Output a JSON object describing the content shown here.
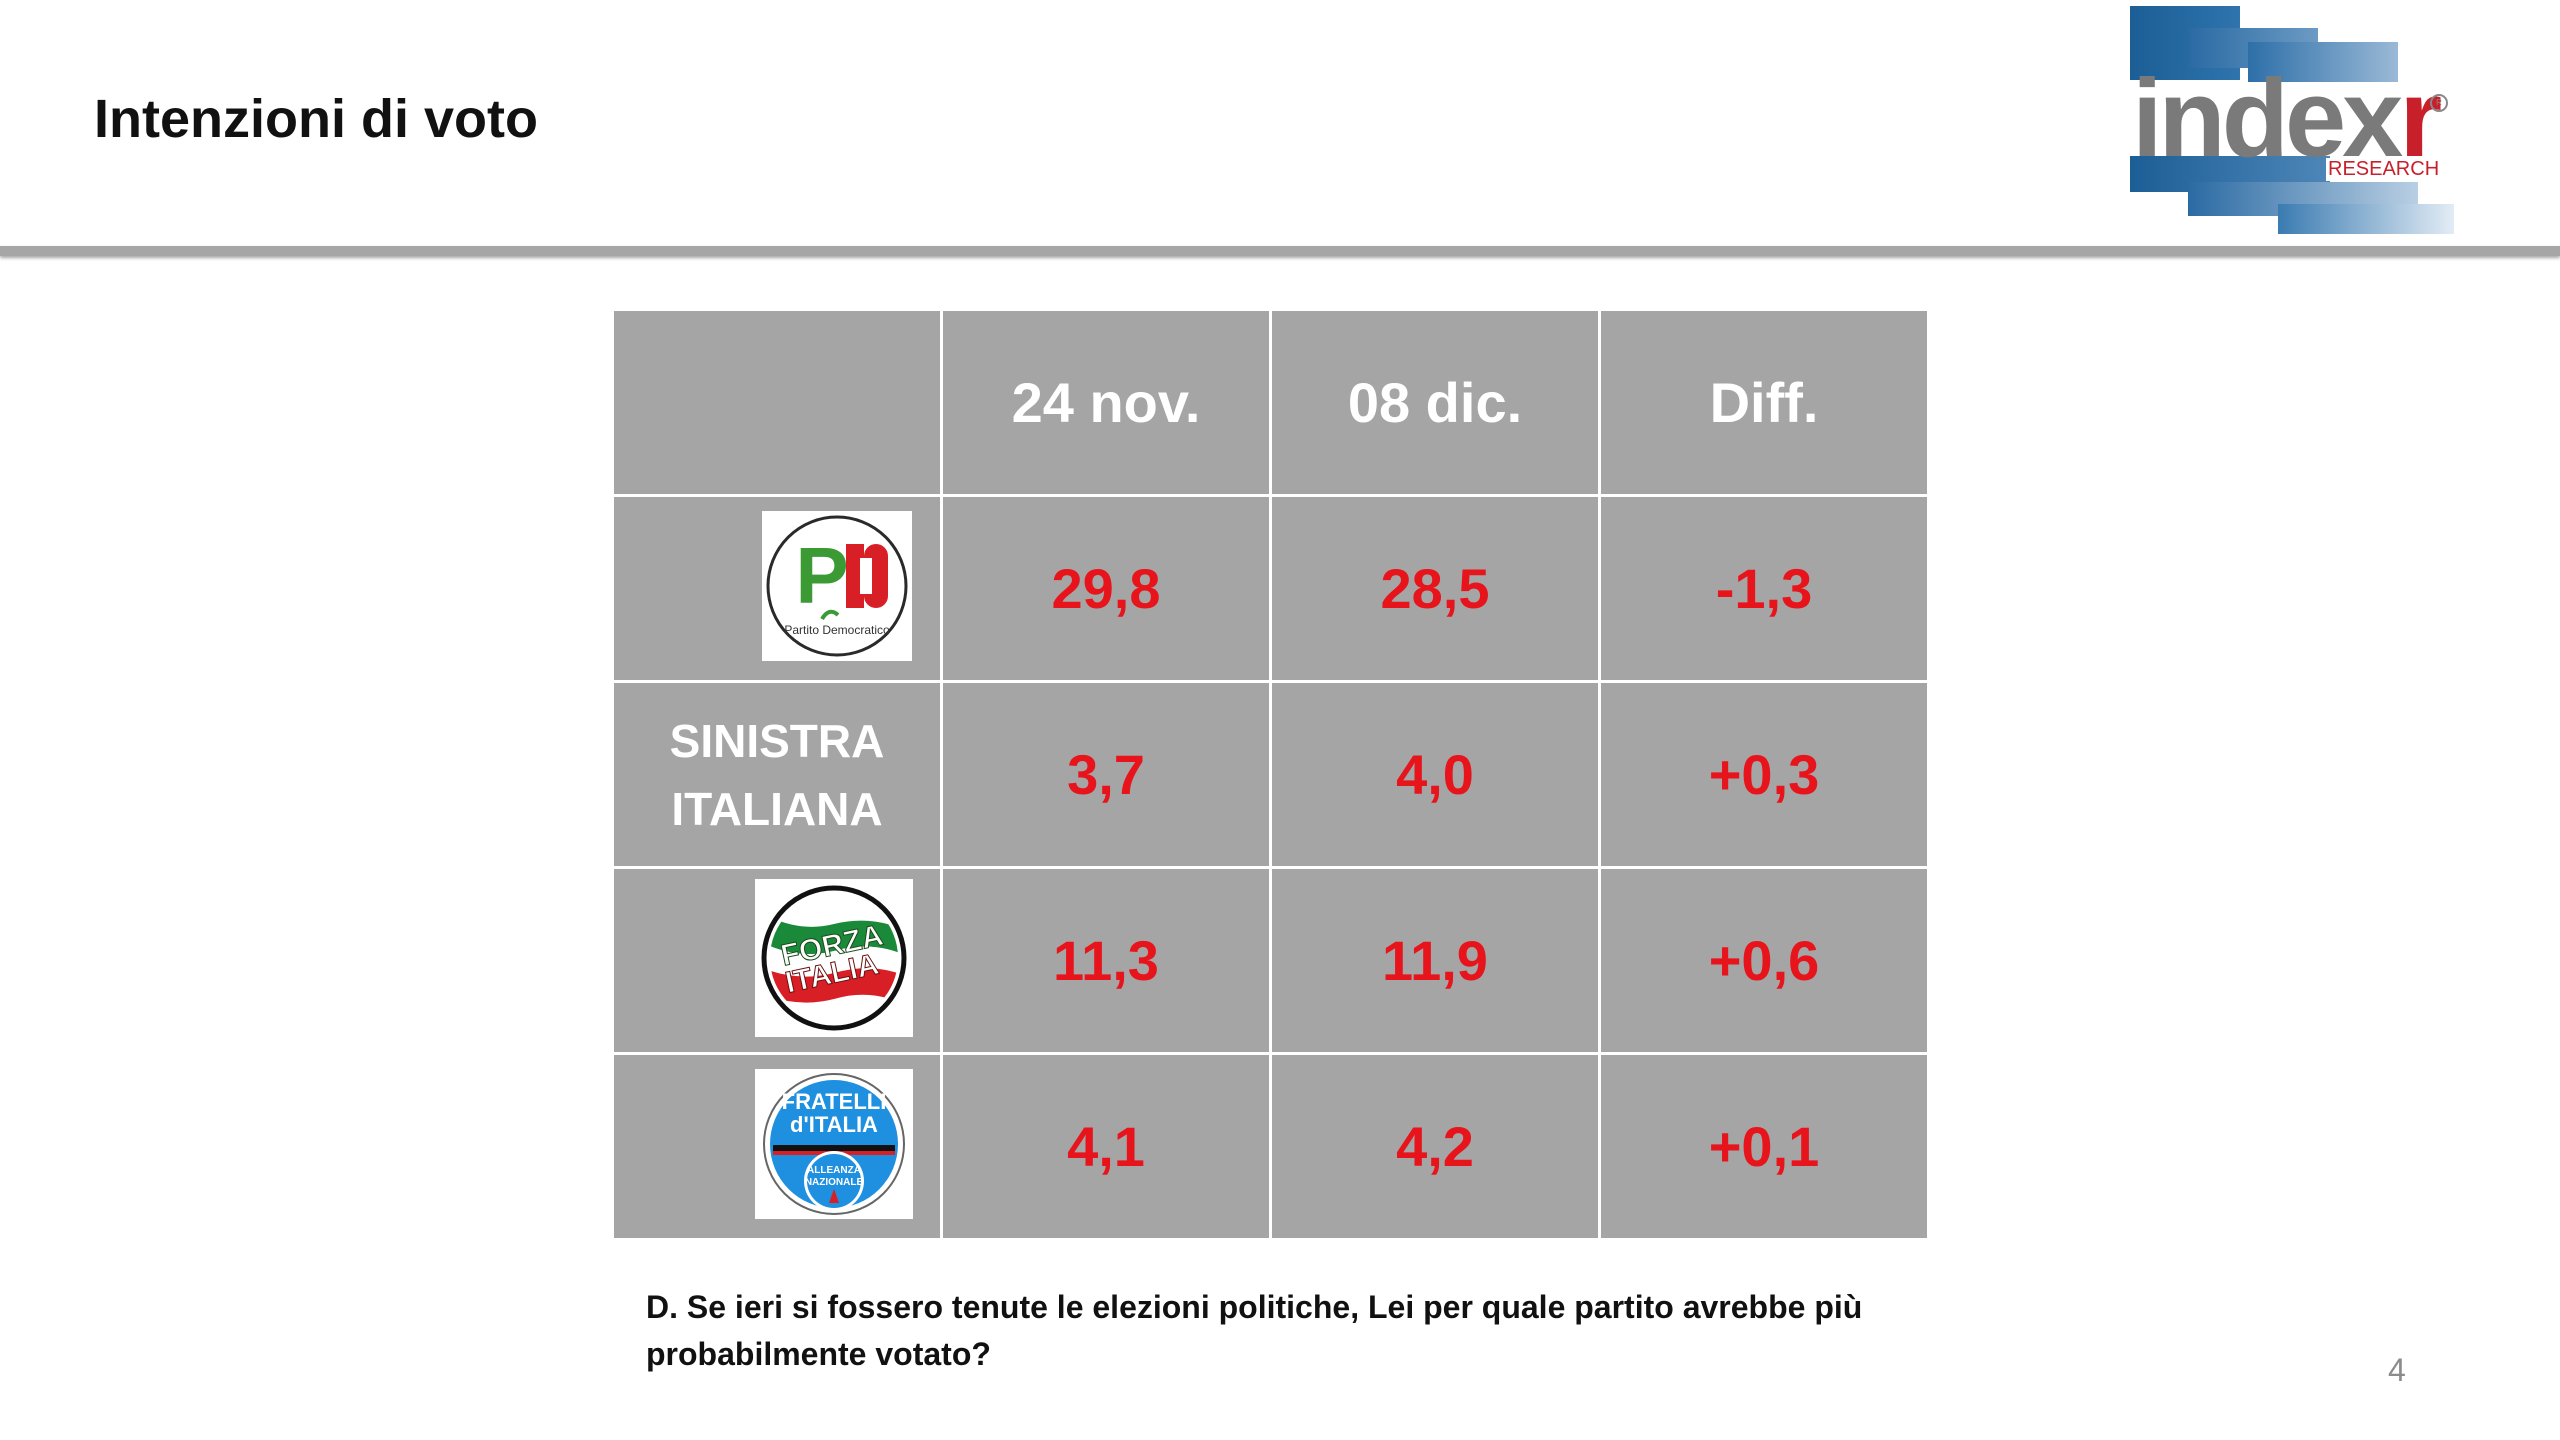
{
  "title": "Intenzioni di voto",
  "brand": {
    "name": "index",
    "name_accent": "r",
    "tag": "RESEARCH",
    "colors": {
      "blue": "#1c5e96",
      "red": "#c8202a"
    }
  },
  "chart_data": {
    "type": "table",
    "columns": [
      "24 nov.",
      "08 dic.",
      "Diff."
    ],
    "rows": [
      {
        "party": "Partito Democratico",
        "logo": "pd-logo",
        "logo_text": {
          "mark": "PD",
          "caption": "Partito Democratico"
        },
        "values": [
          "29,8",
          "28,5",
          "-1,3"
        ]
      },
      {
        "party": "SINISTRA ITALIANA",
        "label_lines": [
          "SINISTRA",
          "ITALIANA"
        ],
        "values": [
          "3,7",
          "4,0",
          "+0,3"
        ]
      },
      {
        "party": "Forza Italia",
        "logo": "forza-italia-logo",
        "logo_text": {
          "line1": "FORZA",
          "line2": "ITALIA"
        },
        "values": [
          "11,3",
          "11,9",
          "+0,6"
        ]
      },
      {
        "party": "Fratelli d'Italia",
        "logo": "fratelli-d-italia-logo",
        "logo_text": {
          "line1": "FRATELLI",
          "line2": "d'ITALIA",
          "line3": "ALLEANZA",
          "line4": "NAZIONALE"
        },
        "values": [
          "4,1",
          "4,2",
          "+0,1"
        ]
      }
    ],
    "colors": {
      "cell_bg": "#a5a5a5",
      "header_text": "#ffffff",
      "value_text": "#e8141c"
    }
  },
  "question": "D. Se ieri si fossero tenute le elezioni politiche, Lei per quale partito avrebbe più probabilmente votato?",
  "page_number": "4"
}
